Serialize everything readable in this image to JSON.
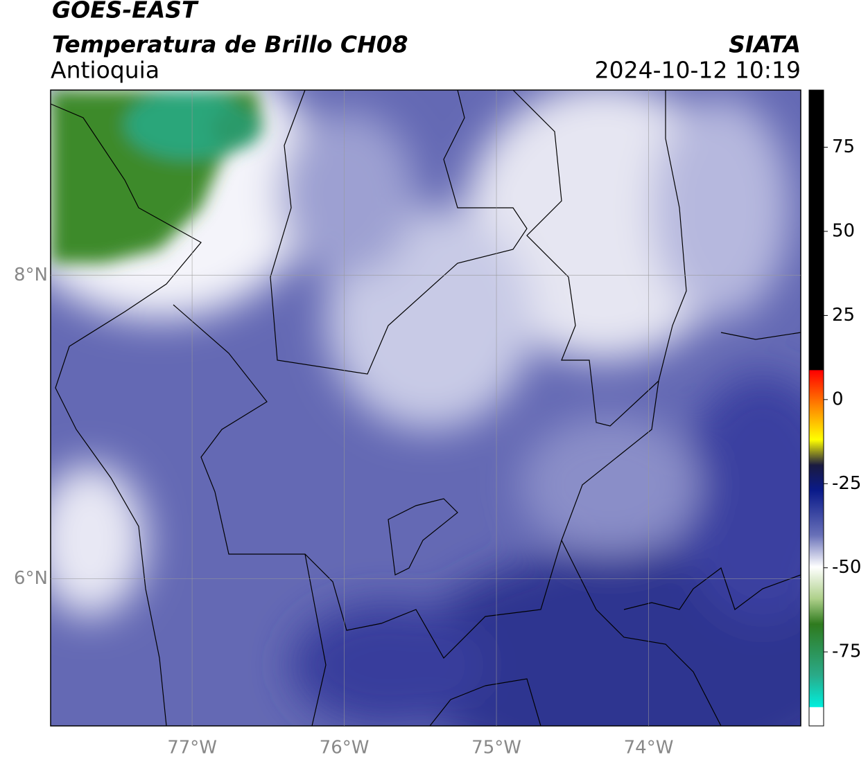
{
  "title": "GOES-EAST",
  "subtitle": "Temperatura de Brillo CH08",
  "region": "Antioquia",
  "source": "SIATA",
  "datetime": "2024-10-12 10:19",
  "map": {
    "xlim": [
      -77.93,
      -73.0
    ],
    "ylim": [
      5.03,
      9.22
    ],
    "xticks": [
      {
        "value": -77,
        "label": "77°W"
      },
      {
        "value": -76,
        "label": "76°W"
      },
      {
        "value": -75,
        "label": "75°W"
      },
      {
        "value": -74,
        "label": "74°W"
      }
    ],
    "yticks": [
      {
        "value": 8,
        "label": "8°N"
      },
      {
        "value": 6,
        "label": "6°N"
      }
    ],
    "grid": true
  },
  "colorbar": {
    "lim": [
      -97,
      92
    ],
    "ticks": [
      75,
      50,
      25,
      0,
      -25,
      -50,
      -75
    ]
  }
}
